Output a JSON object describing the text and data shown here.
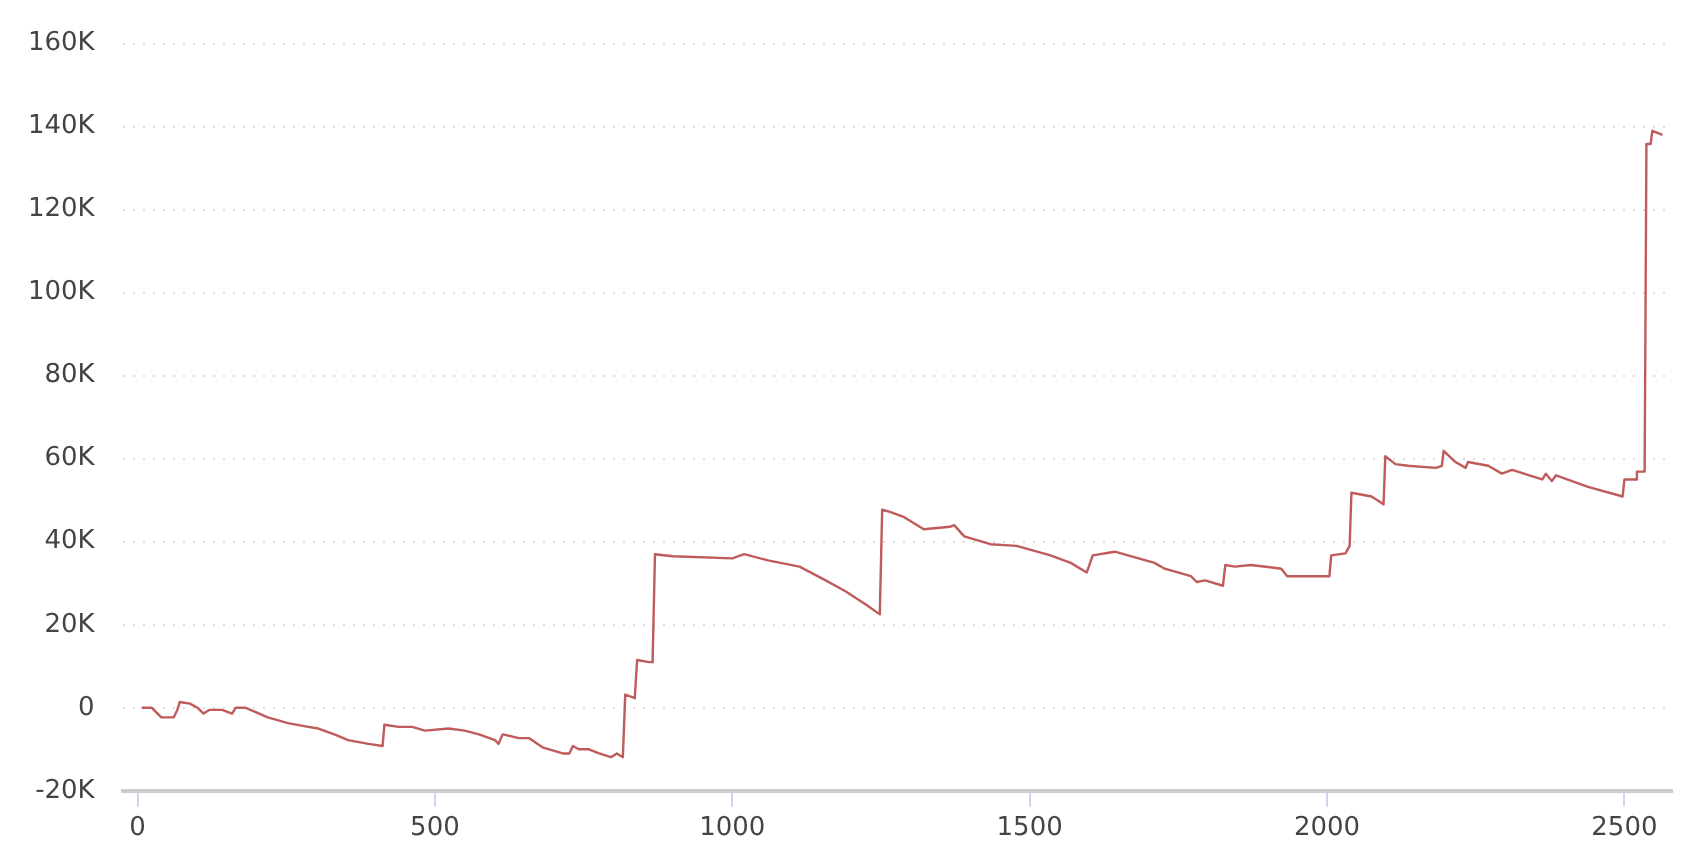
{
  "chart_data": {
    "type": "line",
    "grid": "y",
    "legend": false,
    "marker": "none",
    "line_style": "solid",
    "xlim": [
      -25,
      2580
    ],
    "xticks": [
      0,
      500,
      1000,
      1500,
      2000,
      2500
    ],
    "ylim": [
      -20000,
      160000
    ],
    "yticks": [
      {
        "value": -20000,
        "label": "-20K"
      },
      {
        "value": 0,
        "label": "0"
      },
      {
        "value": 20000,
        "label": "20K"
      },
      {
        "value": 40000,
        "label": "40K"
      },
      {
        "value": 60000,
        "label": "60K"
      },
      {
        "value": 80000,
        "label": "80K"
      },
      {
        "value": 100000,
        "label": "100K"
      },
      {
        "value": 120000,
        "label": "120K"
      },
      {
        "value": 140000,
        "label": "140K"
      },
      {
        "value": 160000,
        "label": "160K"
      }
    ],
    "x": [
      7,
      24,
      40,
      61,
      67,
      71,
      88,
      101,
      111,
      121,
      142,
      159,
      165,
      182,
      219,
      253,
      287,
      304,
      331,
      354,
      388,
      412,
      415,
      439,
      462,
      483,
      523,
      550,
      574,
      601,
      607,
      614,
      641,
      658,
      682,
      715,
      726,
      732,
      742,
      759,
      776,
      796,
      806,
      816,
      820,
      836,
      840,
      860,
      866,
      870,
      900,
      1000,
      1020,
      1060,
      1113,
      1157,
      1191,
      1225,
      1248,
      1252,
      1265,
      1289,
      1322,
      1366,
      1373,
      1390,
      1434,
      1478,
      1535,
      1569,
      1596,
      1606,
      1643,
      1710,
      1727,
      1771,
      1781,
      1795,
      1825,
      1829,
      1845,
      1872,
      1923,
      1933,
      2004,
      2007,
      2031,
      2038,
      2041,
      2075,
      2095,
      2098,
      2115,
      2136,
      2183,
      2193,
      2196,
      2216,
      2233,
      2237,
      2271,
      2294,
      2311,
      2362,
      2368,
      2378,
      2385,
      2439,
      2497,
      2500,
      2520,
      2521,
      2534,
      2537,
      2544,
      2547,
      2564
    ],
    "series": [
      {
        "color": "#bf5b5b",
        "values": [
          0,
          0,
          -2300,
          -2300,
          -500,
          1400,
          1000,
          0,
          -1400,
          -500,
          -500,
          -1400,
          0,
          0,
          -2300,
          -3700,
          -4600,
          -5000,
          -6400,
          -7800,
          -8700,
          -9200,
          -4100,
          -4600,
          -4600,
          -5500,
          -5000,
          -5500,
          -6400,
          -7800,
          -8700,
          -6400,
          -7300,
          -7300,
          -9600,
          -11000,
          -11000,
          -9200,
          -10000,
          -10000,
          -11000,
          -11900,
          -11000,
          -11900,
          3200,
          2300,
          11500,
          11000,
          11000,
          37000,
          36500,
          36000,
          37000,
          35500,
          34000,
          30700,
          28000,
          24800,
          22500,
          47700,
          47200,
          45900,
          43000,
          43600,
          44000,
          41300,
          39400,
          39000,
          36700,
          34900,
          32600,
          36700,
          37600,
          34900,
          33500,
          31700,
          30300,
          30700,
          29400,
          34400,
          34000,
          34400,
          33500,
          31700,
          31700,
          36700,
          37200,
          39000,
          51800,
          50900,
          49000,
          60600,
          58700,
          58300,
          57800,
          58300,
          61900,
          59200,
          57800,
          59200,
          58300,
          56400,
          57300,
          55000,
          56400,
          54600,
          56000,
          53200,
          50900,
          55000,
          55000,
          56900,
          56900,
          135800,
          135800,
          139000,
          138000
        ]
      }
    ]
  }
}
